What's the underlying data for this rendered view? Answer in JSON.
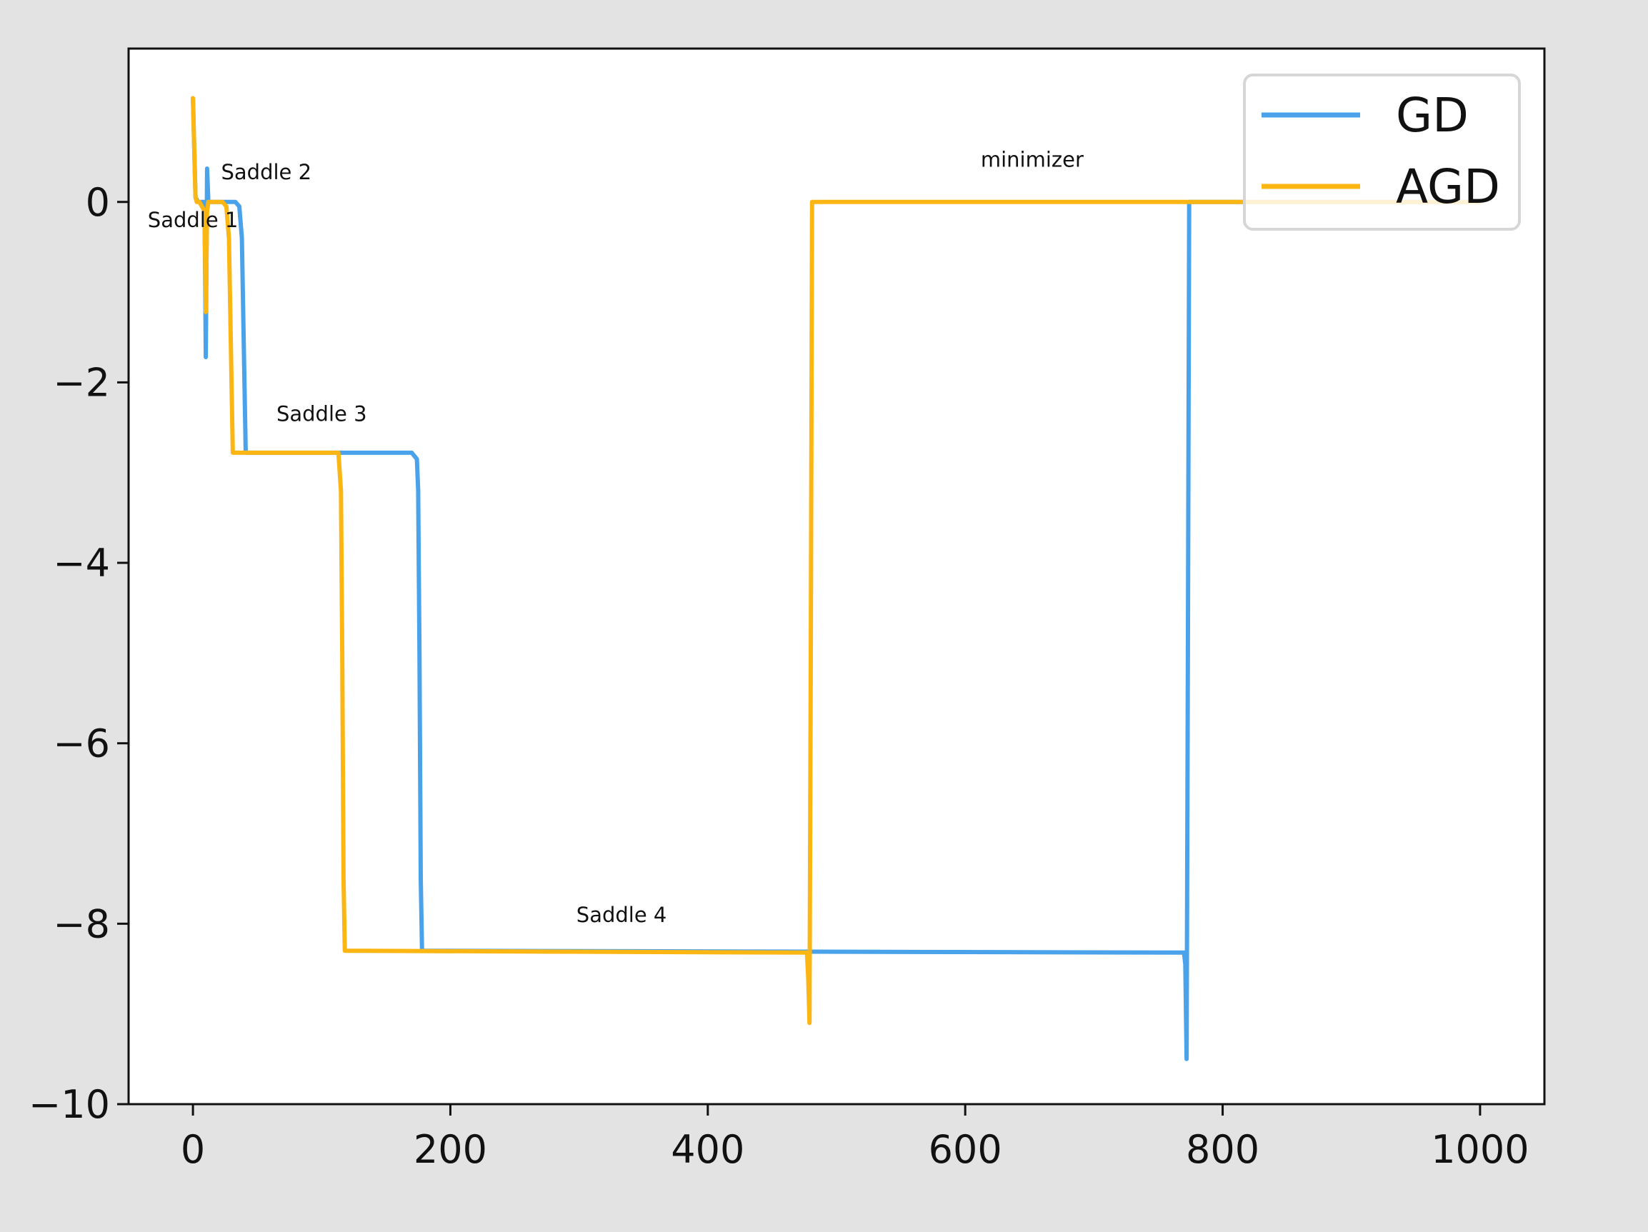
{
  "chart_data": {
    "type": "line",
    "title": "",
    "xlabel": "",
    "ylabel": "",
    "xlim": [
      -50,
      1050
    ],
    "ylim": [
      -10,
      1.7
    ],
    "xticks": [
      0,
      200,
      400,
      600,
      800,
      1000
    ],
    "yticks": [
      0,
      -2,
      -4,
      -6,
      -8,
      -10
    ],
    "xtick_labels": [
      "0",
      "200",
      "400",
      "600",
      "800",
      "1000"
    ],
    "ytick_labels": [
      "0",
      "−2",
      "−4",
      "−6",
      "−8",
      "−10"
    ],
    "grid": false,
    "legend": {
      "position": "top-right",
      "entries": [
        {
          "label": "GD",
          "color": "#4aa3ea"
        },
        {
          "label": "AGD",
          "color": "#fbb614"
        }
      ]
    },
    "series": [
      {
        "name": "GD",
        "color": "#4aa3ea",
        "points": [
          [
            0,
            1.15
          ],
          [
            1,
            0.6
          ],
          [
            2,
            0.05
          ],
          [
            4,
            0.0
          ],
          [
            9,
            0.0
          ],
          [
            10,
            -1.72
          ],
          [
            11,
            0.37
          ],
          [
            12,
            0.0
          ],
          [
            33,
            0.0
          ],
          [
            36,
            -0.05
          ],
          [
            38,
            -0.4
          ],
          [
            40,
            -2.0
          ],
          [
            41,
            -2.78
          ],
          [
            170,
            -2.78
          ],
          [
            174,
            -2.85
          ],
          [
            175,
            -3.2
          ],
          [
            176,
            -5.0
          ],
          [
            177,
            -7.5
          ],
          [
            178,
            -8.3
          ],
          [
            770,
            -8.32
          ],
          [
            771,
            -8.45
          ],
          [
            772,
            -9.5
          ],
          [
            773,
            -5.0
          ],
          [
            774,
            0.0
          ],
          [
            1000,
            0.0
          ]
        ]
      },
      {
        "name": "AGD",
        "color": "#fbb614",
        "points": [
          [
            0,
            1.15
          ],
          [
            1,
            0.6
          ],
          [
            2,
            0.05
          ],
          [
            3,
            0.0
          ],
          [
            5,
            0.0
          ],
          [
            9,
            -0.1
          ],
          [
            10,
            -1.22
          ],
          [
            11,
            -0.1
          ],
          [
            12,
            0.0
          ],
          [
            23,
            0.0
          ],
          [
            26,
            -0.05
          ],
          [
            28,
            -0.4
          ],
          [
            30,
            -2.0
          ],
          [
            31,
            -2.78
          ],
          [
            113,
            -2.78
          ],
          [
            115,
            -3.2
          ],
          [
            116,
            -5.0
          ],
          [
            117,
            -7.5
          ],
          [
            118,
            -8.3
          ],
          [
            477,
            -8.32
          ],
          [
            478,
            -8.6
          ],
          [
            479,
            -9.1
          ],
          [
            480,
            -5.0
          ],
          [
            481,
            0.0
          ],
          [
            1000,
            0.0
          ]
        ]
      }
    ],
    "annotations": [
      {
        "text": "Saddle 1",
        "x": 0,
        "y": -0.28
      },
      {
        "text": "Saddle 2",
        "x": 57,
        "y": 0.25
      },
      {
        "text": "Saddle 3",
        "x": 100,
        "y": -2.43
      },
      {
        "text": "Saddle 4",
        "x": 333,
        "y": -7.98
      },
      {
        "text": "minimizer",
        "x": 652,
        "y": 0.39
      }
    ]
  }
}
